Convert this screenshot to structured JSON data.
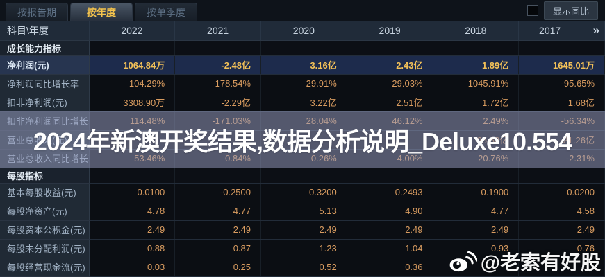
{
  "tabbar": {
    "tabs": [
      {
        "id": "report-period",
        "label": "按报告期",
        "active": false
      },
      {
        "id": "annual",
        "label": "按年度",
        "active": true
      },
      {
        "id": "single-quarter",
        "label": "按单季度",
        "active": false
      }
    ],
    "yoy_checkbox_checked": false,
    "yoy_label": "显示同比"
  },
  "table": {
    "corner_label": "科目\\年度",
    "years": [
      "2022",
      "2021",
      "2020",
      "2019",
      "2018",
      "2017"
    ],
    "more_arrow": "»",
    "rows": [
      {
        "type": "section",
        "label": "成长能力指标"
      },
      {
        "type": "data",
        "label": "净利润(元)",
        "highlight": true,
        "values": [
          "1064.84万",
          "-2.48亿",
          "3.16亿",
          "2.43亿",
          "1.89亿",
          "1645.01万"
        ]
      },
      {
        "type": "data",
        "label": "净利润同比增长率",
        "values": [
          "104.29%",
          "-178.54%",
          "29.91%",
          "29.03%",
          "1045.91%",
          "-95.65%"
        ]
      },
      {
        "type": "data",
        "label": "扣非净利润(元)",
        "values": [
          "3308.90万",
          "-2.29亿",
          "3.22亿",
          "2.51亿",
          "1.72亿",
          "1.68亿"
        ]
      },
      {
        "type": "data",
        "label": "扣非净利润同比增长率",
        "values": [
          "114.48%",
          "-171.03%",
          "28.04%",
          "46.12%",
          "2.49%",
          "-56.34%"
        ]
      },
      {
        "type": "data",
        "label": "营业总收入(元)",
        "values": [
          "",
          "",
          "",
          "",
          "25.68亿",
          "21.26亿"
        ]
      },
      {
        "type": "data",
        "label": "营业总收入同比增长率",
        "values": [
          "53.46%",
          "0.84%",
          "0.26%",
          "4.00%",
          "20.76%",
          "-2.31%"
        ]
      },
      {
        "type": "section",
        "label": "每股指标"
      },
      {
        "type": "data",
        "label": "基本每股收益(元)",
        "values": [
          "0.0100",
          "-0.2500",
          "0.3200",
          "0.2493",
          "0.1900",
          "0.0200"
        ]
      },
      {
        "type": "data",
        "label": "每股净资产(元)",
        "values": [
          "4.78",
          "4.77",
          "5.13",
          "4.90",
          "4.77",
          "4.58"
        ]
      },
      {
        "type": "data",
        "label": "每股资本公积金(元)",
        "values": [
          "2.49",
          "2.49",
          "2.49",
          "2.49",
          "2.49",
          "2.49"
        ]
      },
      {
        "type": "data",
        "label": "每股未分配利润(元)",
        "values": [
          "0.88",
          "0.87",
          "1.23",
          "1.04",
          "0.93",
          "0.76"
        ]
      },
      {
        "type": "data",
        "label": "每股经营现金流(元)",
        "values": [
          "0.03",
          "0.25",
          "0.52",
          "0.36",
          "",
          ""
        ]
      }
    ]
  },
  "watermarks": {
    "banner_text": "2024年新澳开奖结果,数据分析说明_Deluxe10.554",
    "weibo_handle": "@老索有好股"
  },
  "colors": {
    "accent_gold": "#f6c54d",
    "value_orange": "#d99c60",
    "highlight_row_bg": "#1d2b4c",
    "banner_overlay": "rgba(152,158,192,0.52)"
  }
}
